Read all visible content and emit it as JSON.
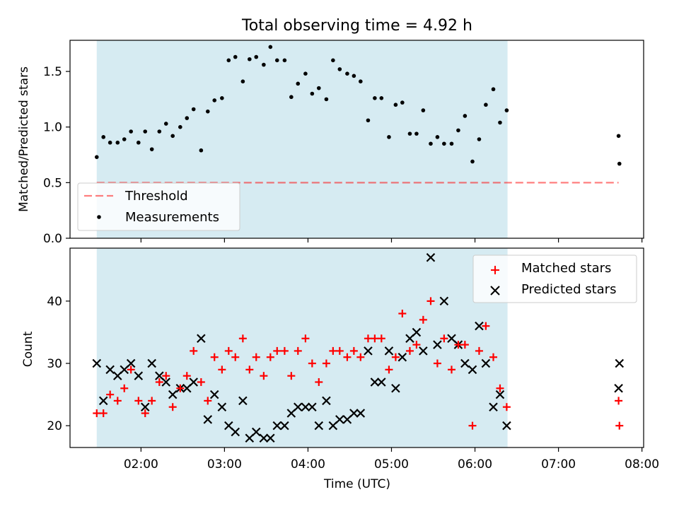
{
  "title": "Total observing time = 4.92 h",
  "colors": {
    "shade": "#add8e6",
    "threshold": "#ff0000",
    "measurements": "#000000",
    "matched": "#ff0000",
    "predicted": "#000000"
  },
  "chart_data": [
    {
      "type": "scatter",
      "ylabel": "Matched/Predicted stars",
      "xlabel": "",
      "xlim_hours": [
        1.15,
        8.02
      ],
      "ylim": [
        0,
        1.78
      ],
      "yticks": [
        0.0,
        0.5,
        1.0,
        1.5
      ],
      "ytick_labels": [
        "0.0",
        "0.5",
        "1.0",
        "1.5"
      ],
      "shaded_interval_hours": [
        1.47,
        6.39
      ],
      "legend_position": "lower-left",
      "threshold": {
        "name": "Threshold",
        "style": "dashed",
        "y": 0.5,
        "x_start_hours": 1.47,
        "x_end_hours": 7.72
      },
      "series": [
        {
          "name": "Measurements",
          "marker": "dot",
          "x_hours": [
            1.47,
            1.55,
            1.63,
            1.72,
            1.8,
            1.88,
            1.97,
            2.05,
            2.13,
            2.22,
            2.3,
            2.38,
            2.47,
            2.55,
            2.63,
            2.72,
            2.8,
            2.88,
            2.97,
            3.05,
            3.13,
            3.22,
            3.3,
            3.38,
            3.47,
            3.55,
            3.63,
            3.72,
            3.8,
            3.88,
            3.97,
            4.05,
            4.13,
            4.22,
            4.3,
            4.38,
            4.47,
            4.55,
            4.63,
            4.72,
            4.8,
            4.88,
            4.97,
            5.05,
            5.13,
            5.22,
            5.3,
            5.38,
            5.47,
            5.55,
            5.63,
            5.72,
            5.8,
            5.88,
            5.97,
            6.05,
            6.13,
            6.22,
            6.3,
            6.38,
            7.72,
            7.73
          ],
          "values": [
            0.73,
            0.91,
            0.86,
            0.86,
            0.89,
            0.96,
            0.86,
            0.96,
            0.8,
            0.96,
            1.03,
            0.92,
            1.0,
            1.08,
            1.16,
            0.79,
            1.14,
            1.24,
            1.26,
            1.6,
            1.63,
            1.41,
            1.61,
            1.63,
            1.56,
            1.72,
            1.6,
            1.6,
            1.27,
            1.39,
            1.48,
            1.3,
            1.35,
            1.25,
            1.6,
            1.52,
            1.48,
            1.46,
            1.41,
            1.06,
            1.26,
            1.26,
            0.91,
            1.2,
            1.22,
            0.94,
            0.94,
            1.15,
            0.85,
            0.91,
            0.85,
            0.85,
            0.97,
            1.1,
            0.69,
            0.89,
            1.2,
            1.34,
            1.04,
            1.15,
            0.92,
            0.67
          ]
        }
      ]
    },
    {
      "type": "scatter",
      "ylabel": "Count",
      "xlabel": "Time (UTC)",
      "xlim_hours": [
        1.15,
        8.02
      ],
      "ylim": [
        16.5,
        48.5
      ],
      "yticks": [
        20,
        30,
        40
      ],
      "ytick_labels": [
        "20",
        "30",
        "40"
      ],
      "xticks_hours": [
        2,
        3,
        4,
        5,
        6,
        7,
        8
      ],
      "xtick_labels": [
        "02:00",
        "03:00",
        "04:00",
        "05:00",
        "06:00",
        "07:00",
        "08:00"
      ],
      "shaded_interval_hours": [
        1.47,
        6.39
      ],
      "legend_position": "upper-right",
      "series": [
        {
          "name": "Matched stars",
          "marker": "plus",
          "x_hours": [
            1.47,
            1.55,
            1.63,
            1.72,
            1.8,
            1.88,
            1.97,
            2.05,
            2.13,
            2.22,
            2.3,
            2.38,
            2.47,
            2.55,
            2.63,
            2.72,
            2.8,
            2.88,
            2.97,
            3.05,
            3.13,
            3.22,
            3.3,
            3.38,
            3.47,
            3.55,
            3.63,
            3.72,
            3.8,
            3.88,
            3.97,
            4.05,
            4.13,
            4.22,
            4.3,
            4.38,
            4.47,
            4.55,
            4.63,
            4.72,
            4.8,
            4.88,
            4.97,
            5.05,
            5.13,
            5.22,
            5.3,
            5.38,
            5.47,
            5.55,
            5.63,
            5.72,
            5.8,
            5.88,
            5.97,
            6.05,
            6.13,
            6.22,
            6.3,
            6.38,
            7.72,
            7.73
          ],
          "values": [
            22,
            22,
            25,
            24,
            26,
            29,
            24,
            22,
            24,
            27,
            28,
            23,
            26,
            28,
            32,
            27,
            24,
            31,
            29,
            32,
            31,
            34,
            29,
            31,
            28,
            31,
            32,
            32,
            28,
            32,
            34,
            30,
            27,
            30,
            32,
            32,
            31,
            32,
            31,
            34,
            34,
            34,
            29,
            31,
            38,
            32,
            33,
            37,
            40,
            30,
            34,
            29,
            33,
            33,
            20,
            32,
            36,
            31,
            26,
            23,
            24,
            20
          ]
        },
        {
          "name": "Predicted stars",
          "marker": "x",
          "x_hours": [
            1.47,
            1.55,
            1.63,
            1.72,
            1.8,
            1.88,
            1.97,
            2.05,
            2.13,
            2.22,
            2.3,
            2.38,
            2.47,
            2.55,
            2.63,
            2.72,
            2.8,
            2.88,
            2.97,
            3.05,
            3.13,
            3.22,
            3.3,
            3.38,
            3.47,
            3.55,
            3.63,
            3.72,
            3.8,
            3.88,
            3.97,
            4.05,
            4.13,
            4.22,
            4.3,
            4.38,
            4.47,
            4.55,
            4.63,
            4.72,
            4.8,
            4.88,
            4.97,
            5.05,
            5.13,
            5.22,
            5.3,
            5.38,
            5.47,
            5.55,
            5.63,
            5.72,
            5.8,
            5.88,
            5.97,
            6.05,
            6.13,
            6.22,
            6.3,
            6.38,
            7.72,
            7.73
          ],
          "values": [
            30,
            24,
            29,
            28,
            29,
            30,
            28,
            23,
            30,
            28,
            27,
            25,
            26,
            26,
            27,
            34,
            21,
            25,
            23,
            20,
            19,
            24,
            18,
            19,
            18,
            18,
            20,
            20,
            22,
            23,
            23,
            23,
            20,
            24,
            20,
            21,
            21,
            22,
            22,
            32,
            27,
            27,
            32,
            26,
            31,
            34,
            35,
            32,
            47,
            33,
            40,
            34,
            33,
            30,
            29,
            36,
            30,
            23,
            25,
            20,
            26,
            30
          ]
        }
      ]
    }
  ]
}
